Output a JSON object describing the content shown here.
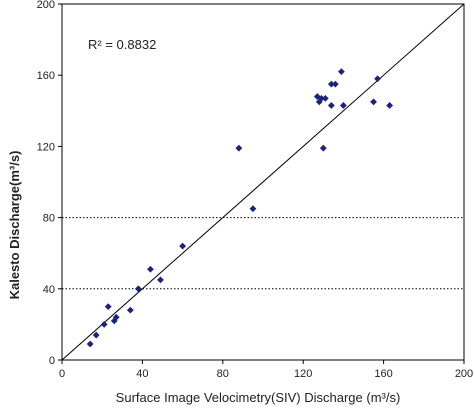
{
  "chart_data": {
    "type": "scatter",
    "title": "",
    "xlabel": "Surface Image Velocimetry(SIV) Discharge (m³/s)",
    "ylabel": "Kalesto Discharge(m³/s)",
    "xlim": [
      0,
      200
    ],
    "ylim": [
      0,
      200
    ],
    "x_ticks": [
      0,
      40,
      80,
      120,
      160,
      200
    ],
    "y_ticks": [
      0,
      40,
      80,
      120,
      160,
      200
    ],
    "grid": {
      "horizontal_dotted_at": [
        40,
        80
      ]
    },
    "legend": "none",
    "annotation": "R² = 0.8832",
    "trendline": {
      "from": [
        0,
        0
      ],
      "to": [
        200,
        200
      ]
    },
    "colors": {
      "points": "#1a237e",
      "axes": "#000000",
      "trendline": "#000000"
    },
    "series": [
      {
        "points": [
          [
            14,
            9
          ],
          [
            17,
            14
          ],
          [
            21,
            20
          ],
          [
            23,
            30
          ],
          [
            26,
            22
          ],
          [
            27,
            24
          ],
          [
            34,
            28
          ],
          [
            38,
            40
          ],
          [
            44,
            51
          ],
          [
            49,
            45
          ],
          [
            60,
            64
          ],
          [
            88,
            119
          ],
          [
            95,
            85
          ],
          [
            127,
            148
          ],
          [
            128,
            145
          ],
          [
            129,
            147
          ],
          [
            130,
            119
          ],
          [
            131,
            147
          ],
          [
            134,
            143
          ],
          [
            134,
            155
          ],
          [
            136,
            155
          ],
          [
            139,
            162
          ],
          [
            140,
            143
          ],
          [
            155,
            145
          ],
          [
            157,
            158
          ],
          [
            163,
            143
          ]
        ]
      }
    ]
  }
}
